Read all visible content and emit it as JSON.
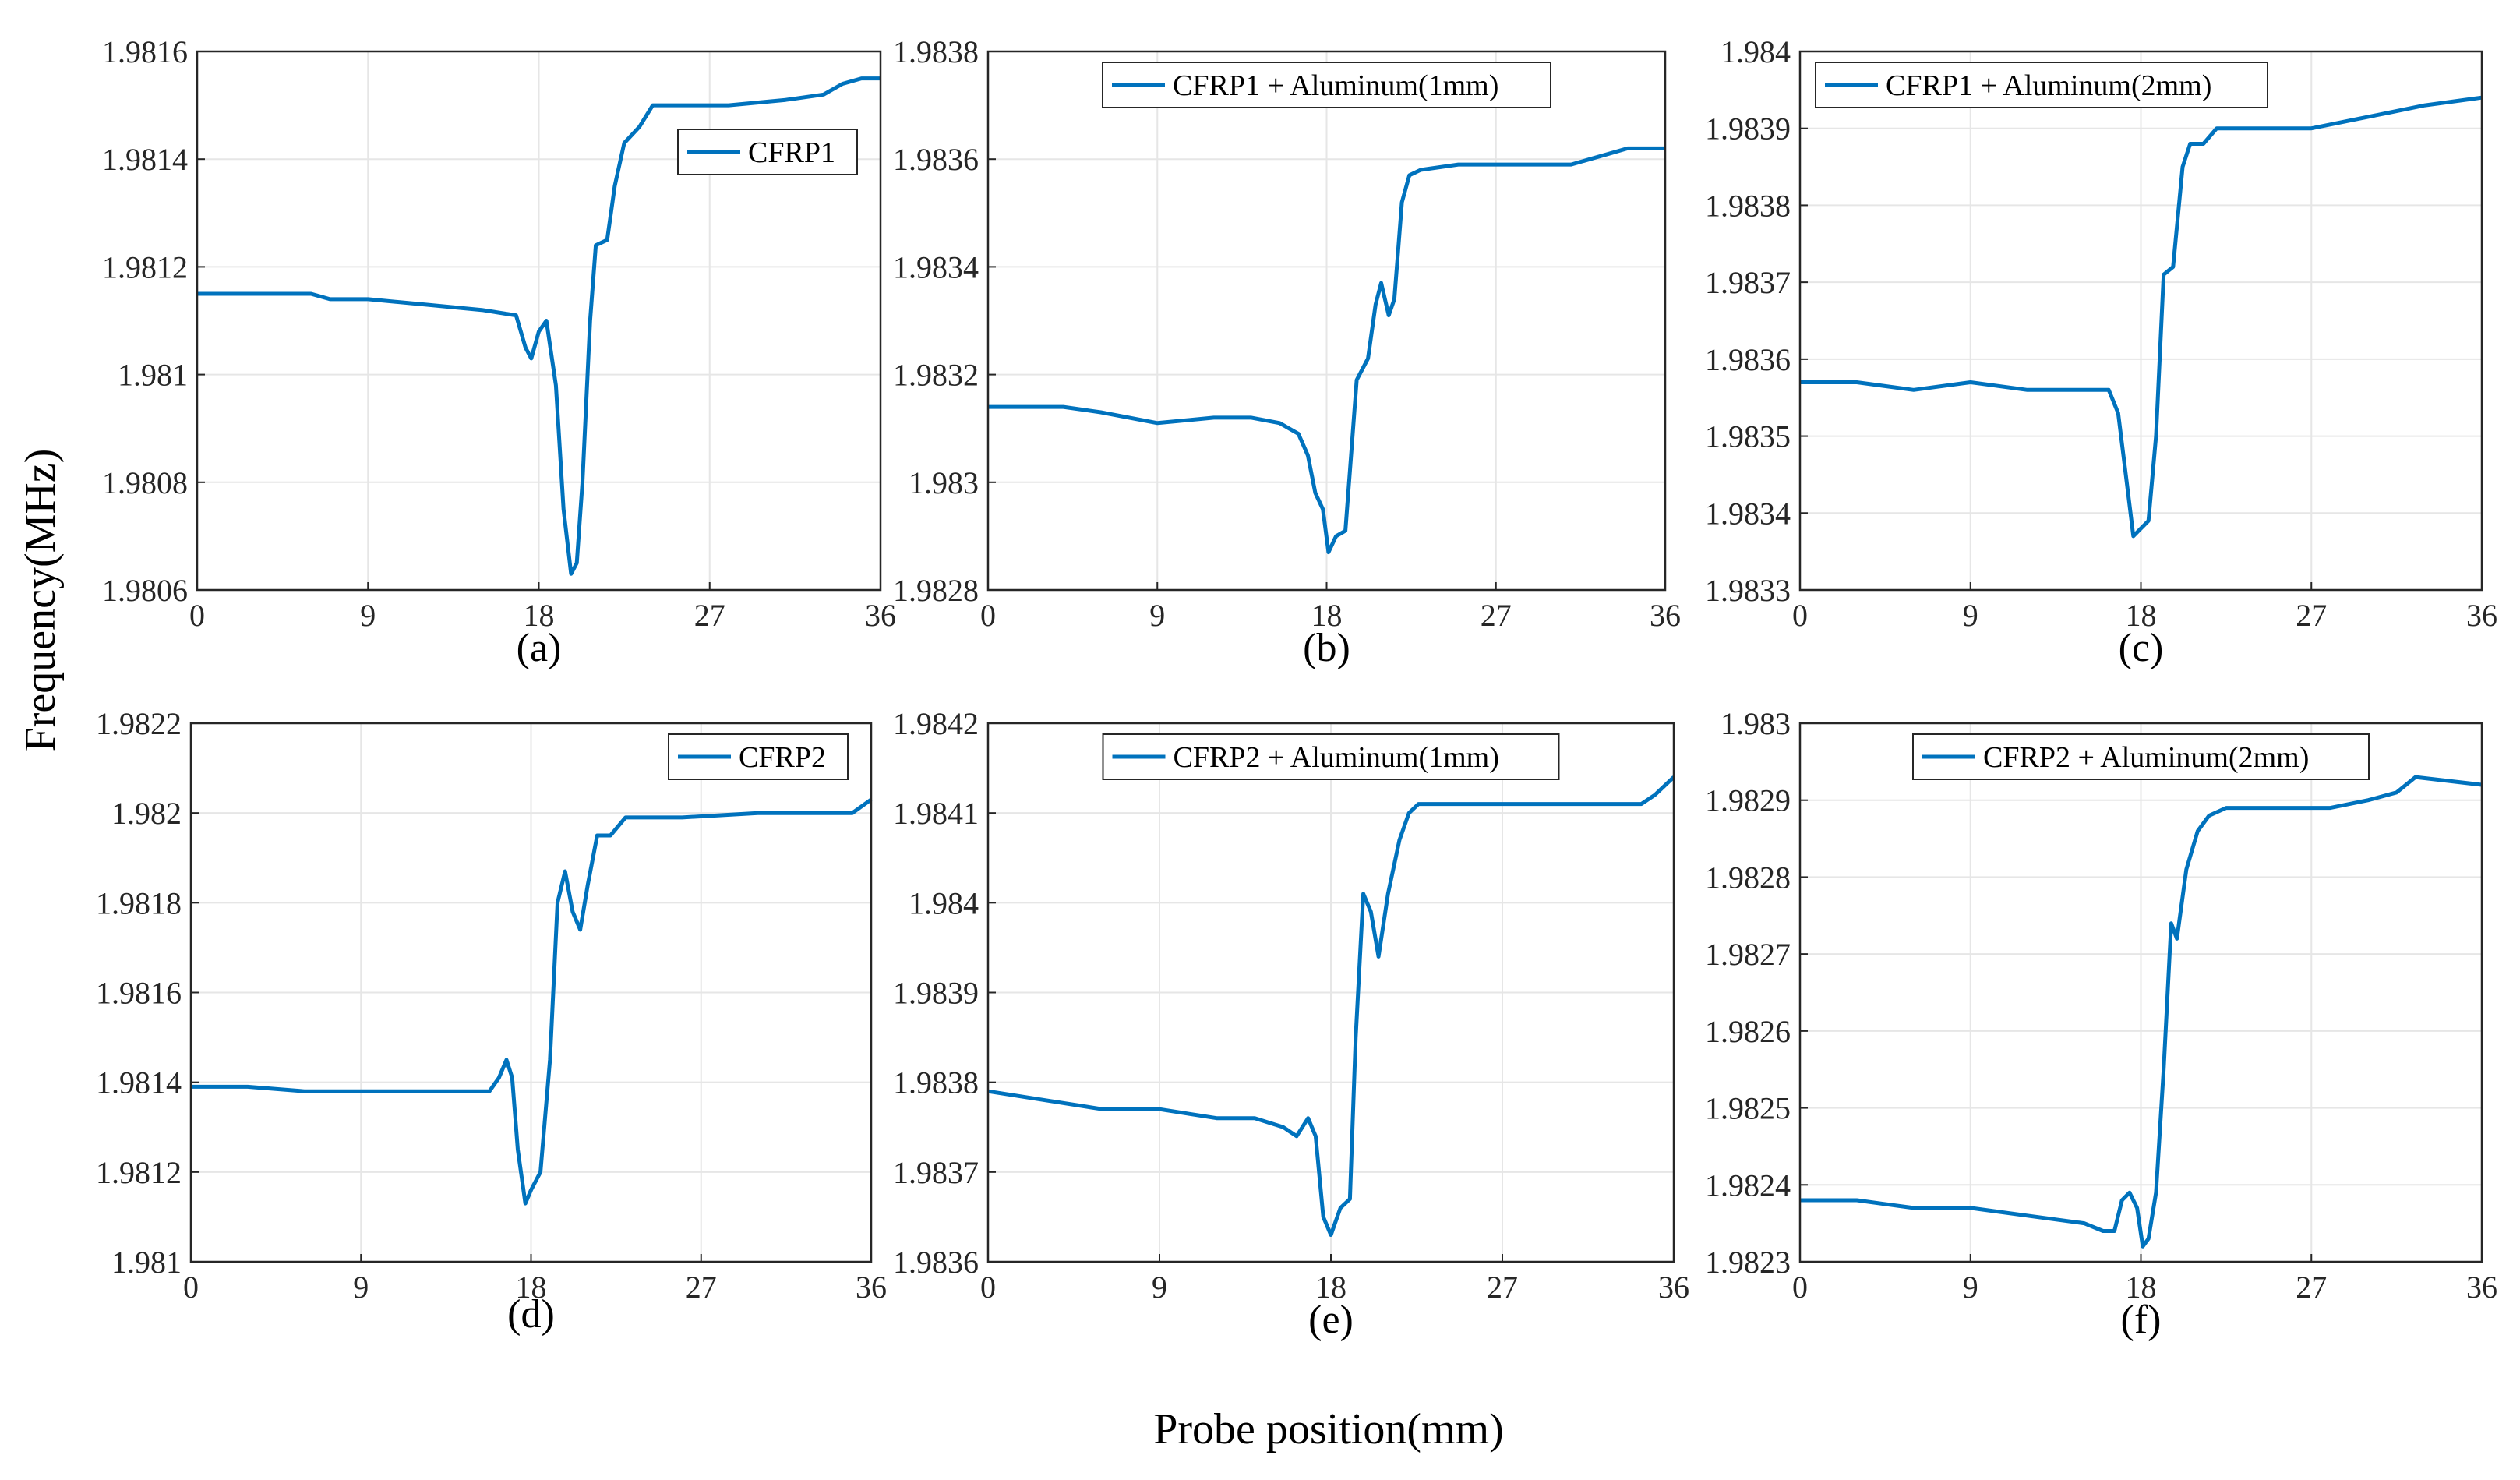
{
  "figure": {
    "ylabel": "Frequency(MHz)",
    "xlabel": "Probe position(mm)",
    "line_color": "#0072BD",
    "grid_color": "#e6e6e6"
  },
  "chart_data": [
    {
      "id": "a",
      "panel_label": "(a)",
      "type": "line",
      "series": [
        {
          "name": "CFRP1"
        }
      ],
      "legend_position": "top-right",
      "xlim": [
        0,
        36
      ],
      "ylim": [
        1.9806,
        1.9816
      ],
      "xticks": [
        0,
        9,
        18,
        27,
        36
      ],
      "xtick_labels": [
        "0",
        "9",
        "18",
        "27",
        "36"
      ],
      "yticks": [
        1.9806,
        1.9808,
        1.981,
        1.9812,
        1.9814,
        1.9816
      ],
      "ytick_labels": [
        "1.9806",
        "1.9808",
        "1.981",
        "1.9812",
        "1.9814",
        "1.9816"
      ],
      "grid": true,
      "points": [
        [
          0,
          1.98115
        ],
        [
          3,
          1.98115
        ],
        [
          6,
          1.98115
        ],
        [
          7,
          1.98114
        ],
        [
          9,
          1.98114
        ],
        [
          12,
          1.98113
        ],
        [
          15,
          1.98112
        ],
        [
          16.8,
          1.98111
        ],
        [
          17.3,
          1.98105
        ],
        [
          17.6,
          1.98103
        ],
        [
          18,
          1.98108
        ],
        [
          18.4,
          1.9811
        ],
        [
          18.9,
          1.98098
        ],
        [
          19.3,
          1.98075
        ],
        [
          19.7,
          1.98063
        ],
        [
          20,
          1.98065
        ],
        [
          20.3,
          1.9808
        ],
        [
          20.7,
          1.9811
        ],
        [
          21,
          1.98124
        ],
        [
          21.6,
          1.98125
        ],
        [
          22,
          1.98135
        ],
        [
          22.5,
          1.98143
        ],
        [
          23.3,
          1.98146
        ],
        [
          24,
          1.9815
        ],
        [
          25,
          1.9815
        ],
        [
          28,
          1.9815
        ],
        [
          31,
          1.98151
        ],
        [
          33,
          1.98152
        ],
        [
          34,
          1.98154
        ],
        [
          35,
          1.98155
        ],
        [
          36,
          1.98155
        ]
      ]
    },
    {
      "id": "b",
      "panel_label": "(b)",
      "type": "line",
      "series": [
        {
          "name": "CFRP1 + Aluminum(1mm)"
        }
      ],
      "legend_position": "top-center",
      "xlim": [
        0,
        36
      ],
      "ylim": [
        1.9828,
        1.9838
      ],
      "xticks": [
        0,
        9,
        18,
        27,
        36
      ],
      "xtick_labels": [
        "0",
        "9",
        "18",
        "27",
        "36"
      ],
      "yticks": [
        1.9828,
        1.983,
        1.9832,
        1.9834,
        1.9836,
        1.9838
      ],
      "ytick_labels": [
        "1.9828",
        "1.983",
        "1.9832",
        "1.9834",
        "1.9836",
        "1.9838"
      ],
      "grid": true,
      "points": [
        [
          0,
          1.98314
        ],
        [
          4,
          1.98314
        ],
        [
          6,
          1.98313
        ],
        [
          9,
          1.98311
        ],
        [
          12,
          1.98312
        ],
        [
          14,
          1.98312
        ],
        [
          15.5,
          1.98311
        ],
        [
          16.5,
          1.98309
        ],
        [
          17,
          1.98305
        ],
        [
          17.4,
          1.98298
        ],
        [
          17.8,
          1.98295
        ],
        [
          18.1,
          1.98287
        ],
        [
          18.5,
          1.9829
        ],
        [
          19,
          1.98291
        ],
        [
          19.3,
          1.98305
        ],
        [
          19.6,
          1.98319
        ],
        [
          20.2,
          1.98323
        ],
        [
          20.6,
          1.98333
        ],
        [
          20.9,
          1.98337
        ],
        [
          21.3,
          1.98331
        ],
        [
          21.6,
          1.98334
        ],
        [
          22,
          1.98352
        ],
        [
          22.4,
          1.98357
        ],
        [
          23,
          1.98358
        ],
        [
          25,
          1.98359
        ],
        [
          28,
          1.98359
        ],
        [
          31,
          1.98359
        ],
        [
          32,
          1.9836
        ],
        [
          33,
          1.98361
        ],
        [
          34,
          1.98362
        ],
        [
          36,
          1.98362
        ]
      ]
    },
    {
      "id": "c",
      "panel_label": "(c)",
      "type": "line",
      "series": [
        {
          "name": "CFRP1 + Aluminum(2mm)"
        }
      ],
      "legend_position": "top-left",
      "xlim": [
        0,
        36
      ],
      "ylim": [
        1.9833,
        1.984
      ],
      "xticks": [
        0,
        9,
        18,
        27,
        36
      ],
      "xtick_labels": [
        "0",
        "9",
        "18",
        "27",
        "36"
      ],
      "yticks": [
        1.9833,
        1.9834,
        1.9835,
        1.9836,
        1.9837,
        1.9838,
        1.9839,
        1.984
      ],
      "ytick_labels": [
        "1.9833",
        "1.9834",
        "1.9835",
        "1.9836",
        "1.9837",
        "1.9838",
        "1.9839",
        "1.984"
      ],
      "grid": true,
      "points": [
        [
          0,
          1.98357
        ],
        [
          3,
          1.98357
        ],
        [
          6,
          1.98356
        ],
        [
          9,
          1.98357
        ],
        [
          12,
          1.98356
        ],
        [
          14,
          1.98356
        ],
        [
          16.3,
          1.98356
        ],
        [
          16.8,
          1.98353
        ],
        [
          17.2,
          1.98345
        ],
        [
          17.6,
          1.98337
        ],
        [
          18,
          1.98338
        ],
        [
          18.4,
          1.98339
        ],
        [
          18.8,
          1.9835
        ],
        [
          19.2,
          1.98371
        ],
        [
          19.7,
          1.98372
        ],
        [
          20.2,
          1.98385
        ],
        [
          20.6,
          1.98388
        ],
        [
          21.3,
          1.98388
        ],
        [
          22,
          1.9839
        ],
        [
          24,
          1.9839
        ],
        [
          27,
          1.9839
        ],
        [
          29,
          1.98391
        ],
        [
          31,
          1.98392
        ],
        [
          33,
          1.98393
        ],
        [
          36,
          1.98394
        ]
      ]
    },
    {
      "id": "d",
      "panel_label": "(d)",
      "type": "line",
      "series": [
        {
          "name": "CFRP2"
        }
      ],
      "legend_position": "top-right",
      "xlim": [
        0,
        36
      ],
      "ylim": [
        1.981,
        1.9822
      ],
      "xticks": [
        0,
        9,
        18,
        27,
        36
      ],
      "xtick_labels": [
        "0",
        "9",
        "18",
        "27",
        "36"
      ],
      "yticks": [
        1.981,
        1.9812,
        1.9814,
        1.9816,
        1.9818,
        1.982,
        1.9822
      ],
      "ytick_labels": [
        "1.981",
        "1.9812",
        "1.9814",
        "1.9816",
        "1.9818",
        "1.982",
        "1.9822"
      ],
      "grid": true,
      "points": [
        [
          0,
          1.98139
        ],
        [
          3,
          1.98139
        ],
        [
          6,
          1.98138
        ],
        [
          9,
          1.98138
        ],
        [
          12,
          1.98138
        ],
        [
          15,
          1.98138
        ],
        [
          15.8,
          1.98138
        ],
        [
          16.3,
          1.98141
        ],
        [
          16.7,
          1.98145
        ],
        [
          17,
          1.98141
        ],
        [
          17.3,
          1.98125
        ],
        [
          17.7,
          1.98113
        ],
        [
          18,
          1.98116
        ],
        [
          18.5,
          1.9812
        ],
        [
          19,
          1.98145
        ],
        [
          19.4,
          1.9818
        ],
        [
          19.8,
          1.98187
        ],
        [
          20.2,
          1.98178
        ],
        [
          20.6,
          1.98174
        ],
        [
          21,
          1.98184
        ],
        [
          21.5,
          1.98195
        ],
        [
          22.2,
          1.98195
        ],
        [
          23,
          1.98199
        ],
        [
          26,
          1.98199
        ],
        [
          30,
          1.982
        ],
        [
          35,
          1.982
        ],
        [
          36,
          1.98203
        ]
      ]
    },
    {
      "id": "e",
      "panel_label": "(e)",
      "type": "line",
      "series": [
        {
          "name": "CFRP2 + Aluminum(1mm)"
        }
      ],
      "legend_position": "top-center",
      "xlim": [
        0,
        36
      ],
      "ylim": [
        1.9836,
        1.9842
      ],
      "xticks": [
        0,
        9,
        18,
        27,
        36
      ],
      "xtick_labels": [
        "0",
        "9",
        "18",
        "27",
        "36"
      ],
      "yticks": [
        1.9836,
        1.9837,
        1.9838,
        1.9839,
        1.984,
        1.9841,
        1.9842
      ],
      "ytick_labels": [
        "1.9836",
        "1.9837",
        "1.9838",
        "1.9839",
        "1.984",
        "1.9841",
        "1.9842"
      ],
      "grid": true,
      "points": [
        [
          0,
          1.98379
        ],
        [
          3,
          1.98378
        ],
        [
          6,
          1.98377
        ],
        [
          9,
          1.98377
        ],
        [
          12,
          1.98376
        ],
        [
          14,
          1.98376
        ],
        [
          15.5,
          1.98375
        ],
        [
          16.2,
          1.98374
        ],
        [
          16.8,
          1.98376
        ],
        [
          17.2,
          1.98374
        ],
        [
          17.6,
          1.98365
        ],
        [
          18,
          1.98363
        ],
        [
          18.5,
          1.98366
        ],
        [
          19,
          1.98367
        ],
        [
          19.3,
          1.98385
        ],
        [
          19.7,
          1.98401
        ],
        [
          20.1,
          1.98399
        ],
        [
          20.5,
          1.98394
        ],
        [
          21,
          1.98401
        ],
        [
          21.6,
          1.98407
        ],
        [
          22.1,
          1.9841
        ],
        [
          22.6,
          1.98411
        ],
        [
          25,
          1.98411
        ],
        [
          30,
          1.98411
        ],
        [
          34.3,
          1.98411
        ],
        [
          35,
          1.98412
        ],
        [
          36,
          1.98414
        ]
      ]
    },
    {
      "id": "f",
      "panel_label": "(f)",
      "type": "line",
      "series": [
        {
          "name": "CFRP2 + Aluminum(2mm)"
        }
      ],
      "legend_position": "top-center",
      "xlim": [
        0,
        36
      ],
      "ylim": [
        1.9823,
        1.983
      ],
      "xticks": [
        0,
        9,
        18,
        27,
        36
      ],
      "xtick_labels": [
        "0",
        "9",
        "18",
        "27",
        "36"
      ],
      "yticks": [
        1.9823,
        1.9824,
        1.9825,
        1.9826,
        1.9827,
        1.9828,
        1.9829,
        1.983
      ],
      "ytick_labels": [
        "1.9823",
        "1.9824",
        "1.9825",
        "1.9826",
        "1.9827",
        "1.9828",
        "1.9829",
        "1.983"
      ],
      "grid": true,
      "points": [
        [
          0,
          1.98238
        ],
        [
          3,
          1.98238
        ],
        [
          6,
          1.98237
        ],
        [
          9,
          1.98237
        ],
        [
          12,
          1.98236
        ],
        [
          15,
          1.98235
        ],
        [
          16,
          1.98234
        ],
        [
          16.6,
          1.98234
        ],
        [
          17,
          1.98238
        ],
        [
          17.4,
          1.98239
        ],
        [
          17.8,
          1.98237
        ],
        [
          18.1,
          1.98232
        ],
        [
          18.4,
          1.98233
        ],
        [
          18.8,
          1.98239
        ],
        [
          19.2,
          1.98255
        ],
        [
          19.6,
          1.98274
        ],
        [
          19.9,
          1.98272
        ],
        [
          20.4,
          1.98281
        ],
        [
          21,
          1.98286
        ],
        [
          21.6,
          1.98288
        ],
        [
          22.5,
          1.98289
        ],
        [
          25,
          1.98289
        ],
        [
          28,
          1.98289
        ],
        [
          30,
          1.9829
        ],
        [
          31.5,
          1.98291
        ],
        [
          32.5,
          1.98293
        ],
        [
          36,
          1.98292
        ]
      ]
    }
  ]
}
